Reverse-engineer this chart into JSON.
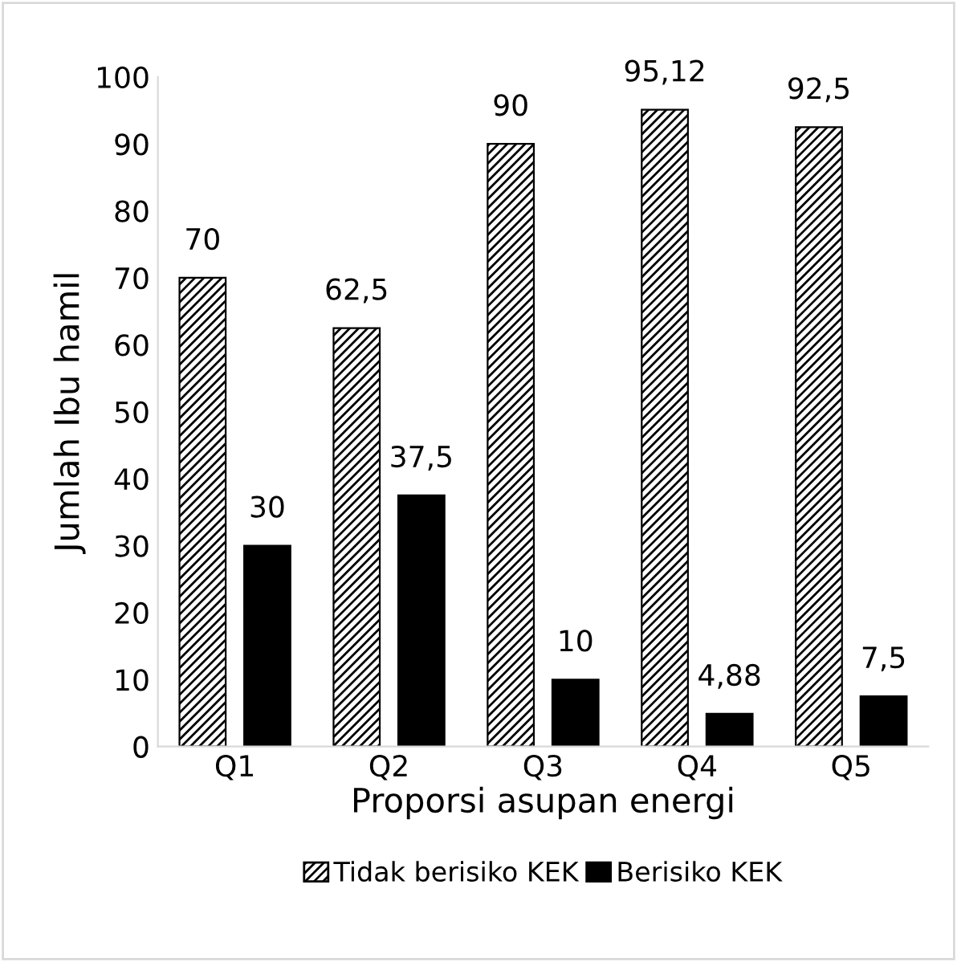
{
  "chart_data": {
    "type": "bar",
    "xlabel": "Proporsi asupan energi",
    "ylabel": "Jumlah Ibu hamil",
    "categories": [
      "Q1",
      "Q2",
      "Q3",
      "Q4",
      "Q5"
    ],
    "series": [
      {
        "name": "Tidak berisiko KEK",
        "color": "#000000",
        "values": [
          70,
          62.5,
          90,
          95.12,
          92.5
        ],
        "value_labels": [
          "70",
          "62,5",
          "90",
          "95,12",
          "92,5"
        ]
      },
      {
        "name": "Berisiko KEK",
        "color": "#000000",
        "values": [
          30,
          37.5,
          10,
          4.88,
          7.5
        ],
        "value_labels": [
          "30",
          "37,5",
          "10",
          "4,88",
          "7,5"
        ]
      }
    ],
    "ylim": [
      0,
      100
    ],
    "yticks": [
      0,
      10,
      20,
      30,
      40,
      50,
      60,
      70,
      80,
      90,
      100
    ],
    "grid": false,
    "legend": "bottom"
  }
}
